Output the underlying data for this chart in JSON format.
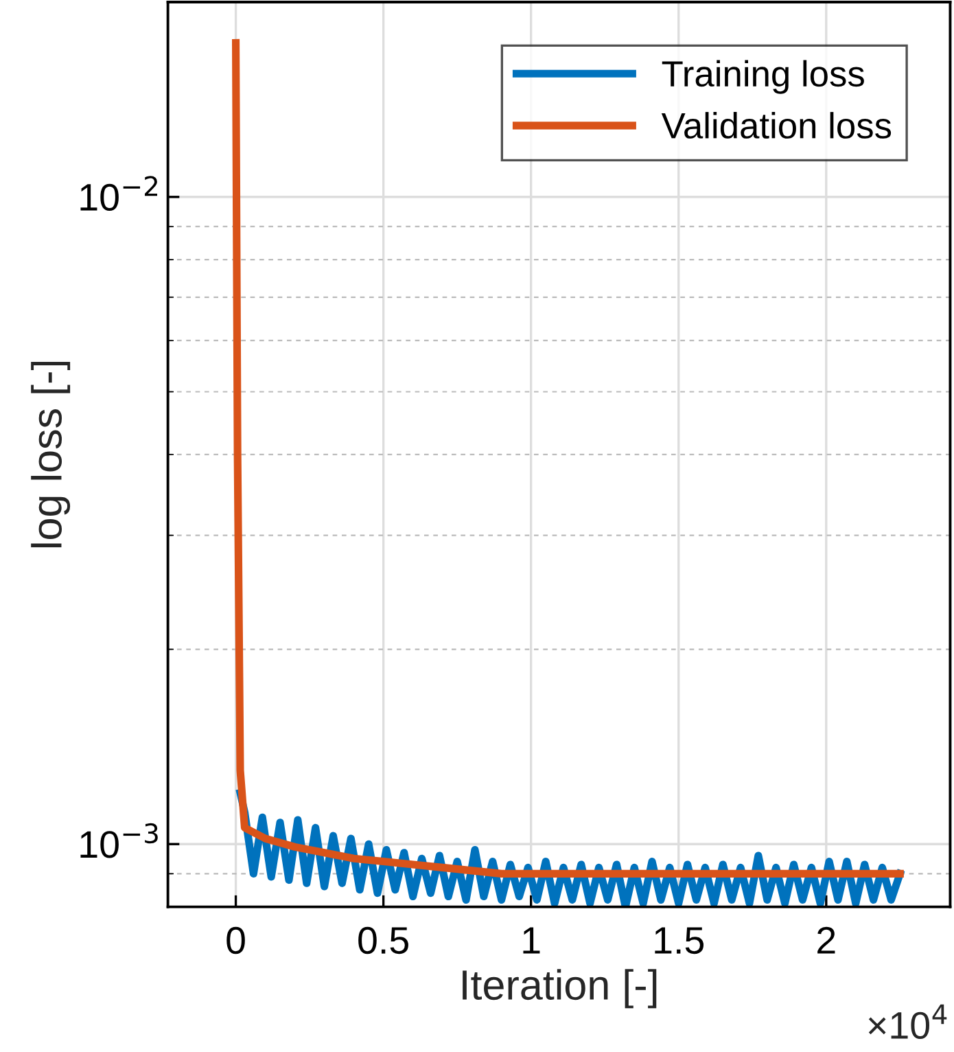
{
  "chart_data": {
    "type": "line",
    "xlabel": "Iteration [-]",
    "ylabel": "log loss [-]",
    "log": "y",
    "grid": true,
    "legend": "top right",
    "line_style": "solid",
    "marker": "none",
    "xlim": [
      -0.23,
      2.42
    ],
    "xticks": [
      0,
      0.5,
      1,
      1.5,
      2
    ],
    "ylim": [
      0.0008,
      0.02
    ],
    "yticks": [
      {
        "value": 0.001,
        "label": "10$^{−3}$"
      },
      {
        "value": 0.01,
        "label": "10$^{−2}$"
      }
    ],
    "annotations": [
      "×10$^{4}$"
    ],
    "series": [
      {
        "name": "Training loss",
        "color": "#0072bd",
        "x": [
          0.015,
          0.03,
          0.06,
          0.09,
          0.12,
          0.15,
          0.18,
          0.21,
          0.24,
          0.27,
          0.3,
          0.33,
          0.36,
          0.39,
          0.42,
          0.45,
          0.48,
          0.51,
          0.54,
          0.57,
          0.6,
          0.63,
          0.66,
          0.69,
          0.72,
          0.75,
          0.78,
          0.81,
          0.84,
          0.87,
          0.9,
          0.93,
          0.96,
          0.99,
          1.02,
          1.05,
          1.08,
          1.11,
          1.14,
          1.17,
          1.2,
          1.23,
          1.26,
          1.29,
          1.32,
          1.35,
          1.38,
          1.41,
          1.44,
          1.47,
          1.5,
          1.53,
          1.56,
          1.59,
          1.62,
          1.65,
          1.68,
          1.71,
          1.74,
          1.77,
          1.8,
          1.83,
          1.86,
          1.89,
          1.92,
          1.95,
          1.98,
          2.01,
          2.04,
          2.07,
          2.1,
          2.13,
          2.16,
          2.19,
          2.22,
          2.25
        ],
        "values": [
          0.0012,
          0.00112,
          0.0009,
          0.0011,
          0.00089,
          0.00108,
          0.00088,
          0.00109,
          0.00087,
          0.00106,
          0.00086,
          0.00103,
          0.00087,
          0.00102,
          0.00085,
          0.001,
          0.00084,
          0.00098,
          0.00085,
          0.00097,
          0.00083,
          0.00095,
          0.00084,
          0.00096,
          0.00083,
          0.00094,
          0.00082,
          0.00098,
          0.00083,
          0.00094,
          0.00082,
          0.00093,
          0.00083,
          0.00092,
          0.00082,
          0.00094,
          0.00081,
          0.00092,
          0.00082,
          0.00093,
          0.00081,
          0.00092,
          0.00082,
          0.00093,
          0.0008,
          0.00092,
          0.00081,
          0.00094,
          0.00082,
          0.00092,
          0.00081,
          0.00093,
          0.00082,
          0.00092,
          0.00081,
          0.00093,
          0.00082,
          0.00092,
          0.00081,
          0.00096,
          0.00082,
          0.00092,
          0.00081,
          0.00093,
          0.00082,
          0.00092,
          0.00081,
          0.00094,
          0.00082,
          0.00094,
          0.00081,
          0.00093,
          0.00082,
          0.00092,
          0.00082,
          0.0009
        ]
      },
      {
        "name": "Validation loss",
        "color": "#d95319",
        "x": [
          0,
          0.006,
          0.015,
          0.03,
          0.1,
          0.2,
          0.3,
          0.4,
          0.5,
          0.6,
          0.7,
          0.8,
          0.9,
          1.2,
          1.6,
          2.0,
          2.25
        ],
        "values": [
          0.0173,
          0.004,
          0.0013,
          0.00106,
          0.00102,
          0.00099,
          0.00097,
          0.00095,
          0.00094,
          0.00093,
          0.00092,
          0.00091,
          0.0009,
          0.0009,
          0.0009,
          0.0009,
          0.0009
        ]
      }
    ]
  }
}
